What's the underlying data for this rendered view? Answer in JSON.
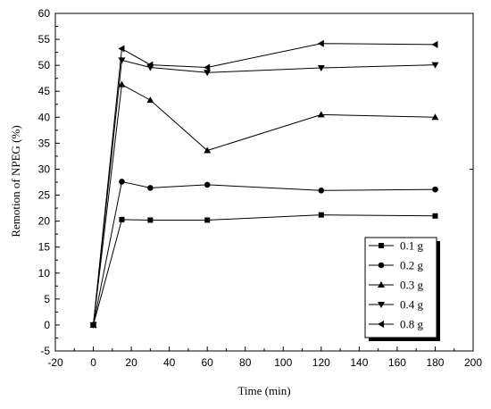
{
  "chart_data": {
    "type": "line",
    "xlabel": "Time (min)",
    "ylabel": "Remotion of NPEG (%)",
    "xlim": [
      -20,
      200
    ],
    "ylim": [
      -5,
      60
    ],
    "xticks": [
      "-20",
      "0",
      "20",
      "40",
      "60",
      "80",
      "100",
      "120",
      "140",
      "160",
      "180",
      "200"
    ],
    "yticks": [
      "-5",
      "0",
      "5",
      "10",
      "15",
      "20",
      "25",
      "30",
      "35",
      "40",
      "45",
      "50",
      "55",
      "60"
    ],
    "x": [
      0,
      15,
      30,
      60,
      120,
      180
    ],
    "legend_position": "bottom-right",
    "series": [
      {
        "name": "0.1 g",
        "marker": "square",
        "values": [
          0,
          20.3,
          20.2,
          20.2,
          21.2,
          21.0
        ]
      },
      {
        "name": "0.2 g",
        "marker": "circle",
        "values": [
          0,
          27.6,
          26.4,
          27.0,
          25.9,
          26.1
        ]
      },
      {
        "name": "0.3 g",
        "marker": "triangle-up",
        "values": [
          0,
          46.3,
          43.3,
          33.6,
          40.5,
          40.0
        ]
      },
      {
        "name": "0.4 g",
        "marker": "triangle-down",
        "values": [
          0,
          51.0,
          49.6,
          48.6,
          49.5,
          50.1
        ]
      },
      {
        "name": "0.8 g",
        "marker": "triangle-left",
        "values": [
          0,
          53.2,
          50.1,
          49.6,
          54.2,
          54.0
        ]
      }
    ]
  }
}
